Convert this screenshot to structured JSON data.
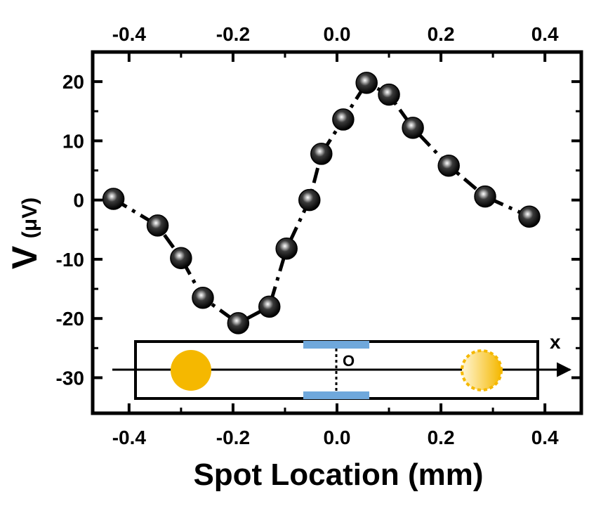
{
  "chart_data": {
    "type": "line",
    "xlabel": "Spot Location (mm)",
    "ylabel_main": "V",
    "ylabel_unit": "(μV)",
    "xlim": [
      -0.47,
      0.47
    ],
    "ylim": [
      -36,
      25
    ],
    "xticks": [
      -0.4,
      -0.2,
      0.0,
      0.2,
      0.4
    ],
    "xtick_labels": [
      "-0.4",
      "-0.2",
      "0.0",
      "0.2",
      "0.4"
    ],
    "yticks": [
      20,
      10,
      0,
      -10,
      -20,
      -30
    ],
    "ytick_labels": [
      "20",
      "10",
      "0",
      "-10",
      "-20",
      "-30"
    ],
    "grid": false,
    "series": [
      {
        "x": [
          -0.43,
          -0.345,
          -0.3,
          -0.258,
          -0.19,
          -0.13,
          -0.097,
          -0.053,
          -0.03,
          0.012,
          0.057,
          0.1,
          0.146,
          0.215,
          0.285,
          0.37
        ],
        "y": [
          0.2,
          -4.3,
          -9.8,
          -16.5,
          -20.8,
          -18.0,
          -8.2,
          0.0,
          7.8,
          13.6,
          19.8,
          17.8,
          12.2,
          5.8,
          0.6,
          -2.8
        ]
      }
    ],
    "inset": {
      "axis_letter": "x",
      "origin_label": "O",
      "colors": {
        "spot": "#F5B800",
        "electrode": "#6FA8DC"
      }
    }
  }
}
